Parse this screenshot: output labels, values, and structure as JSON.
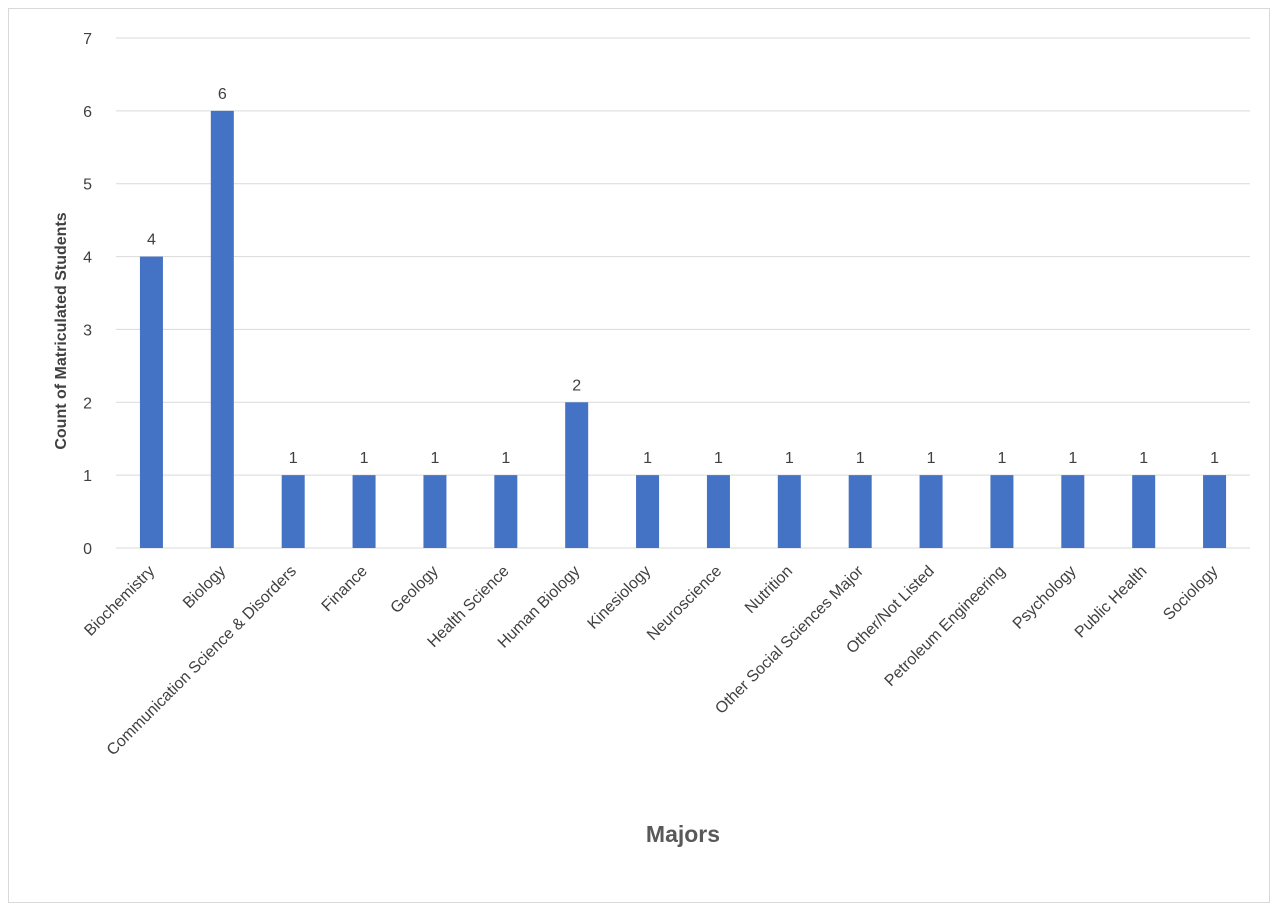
{
  "chart_data": {
    "type": "bar",
    "title": "",
    "xlabel": "Majors",
    "ylabel": "Count of Matriculated Students",
    "ylim": [
      0,
      7
    ],
    "yticks": [
      0,
      1,
      2,
      3,
      4,
      5,
      6,
      7
    ],
    "grid": true,
    "legend": "none",
    "bar_color": "#4472c4",
    "categories": [
      "Biochemistry",
      "Biology",
      "Communication Science & Disorders",
      "Finance",
      "Geology",
      "Health Science",
      "Human Biology",
      "Kinesiology",
      "Neuroscience",
      "Nutrition",
      "Other Social Sciences Major",
      "Other/Not Listed",
      "Petroleum Engineering",
      "Psychology",
      "Public Health",
      "Sociology"
    ],
    "values": [
      4,
      6,
      1,
      1,
      1,
      1,
      2,
      1,
      1,
      1,
      1,
      1,
      1,
      1,
      1,
      1
    ],
    "data_labels": true
  }
}
